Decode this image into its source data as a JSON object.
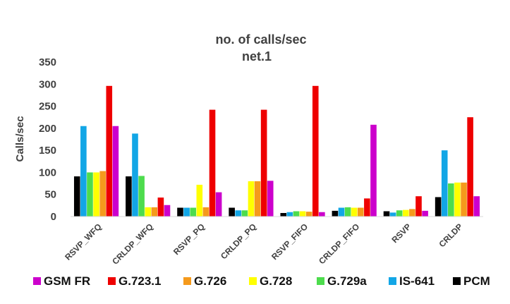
{
  "chart_data": {
    "type": "bar",
    "title": "no. of calls/sec",
    "subtitle": "net.1",
    "ylabel": "Calls/sec",
    "xlabel": "",
    "ylim": [
      0,
      350
    ],
    "yticks": [
      0,
      50,
      100,
      150,
      200,
      250,
      300,
      350
    ],
    "grid": false,
    "legend_position": "bottom",
    "categories": [
      "RSVP_WFQ",
      "CRLDP_WFQ",
      "RSVP_PQ",
      "CRLDP_PQ",
      "RSVP_FIFO",
      "CRLDP_FIFO",
      "RSVP",
      "CRLDP"
    ],
    "series": [
      {
        "name": "PCM",
        "color": "#000000",
        "values": [
          91,
          91,
          20,
          20,
          8,
          13,
          12,
          44
        ]
      },
      {
        "name": "IS-641",
        "color": "#12a6e6",
        "values": [
          205,
          188,
          20,
          14,
          10,
          20,
          9,
          150
        ]
      },
      {
        "name": "G.729a",
        "color": "#4ddc4d",
        "values": [
          100,
          92,
          20,
          14,
          12,
          21,
          14,
          75
        ]
      },
      {
        "name": "G.728",
        "color": "#ffff00",
        "values": [
          100,
          21,
          72,
          80,
          12,
          20,
          15,
          77
        ]
      },
      {
        "name": "G.726",
        "color": "#f59a1c",
        "values": [
          103,
          21,
          21,
          80,
          11,
          20,
          17,
          77
        ]
      },
      {
        "name": "G.723.1",
        "color": "#ee0000",
        "values": [
          296,
          43,
          242,
          242,
          296,
          41,
          46,
          225
        ]
      },
      {
        "name": "GSM FR",
        "color": "#cc00cc",
        "values": [
          205,
          26,
          55,
          81,
          10,
          208,
          13,
          46
        ]
      }
    ],
    "legend_order": [
      "GSM FR",
      "G.723.1",
      "G.726",
      "G.728",
      "G.729a",
      "IS-641",
      "PCM"
    ]
  }
}
